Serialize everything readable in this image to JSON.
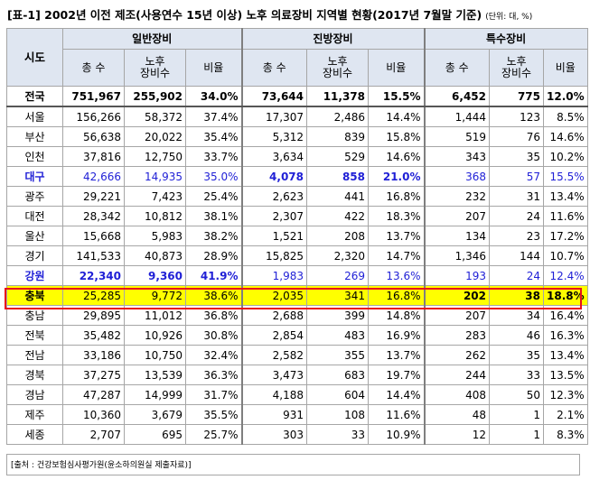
{
  "title": "[표-1] 2002년 이전 제조(사용연수 15년 이상) 노후 의료장비 지역별 현황(2017년 7월말 기준)",
  "unit": "(단위: 대, %)",
  "header": {
    "region": "시도",
    "groups": [
      "일반장비",
      "진방장비",
      "특수장비"
    ],
    "sub": [
      "총 수",
      "노후\n장비수",
      "비율"
    ]
  },
  "rows": [
    {
      "region": "전국",
      "v": [
        "751,967",
        "255,902",
        "34.0%",
        "73,644",
        "11,378",
        "15.5%",
        "6,452",
        "775",
        "12.0%"
      ],
      "style": "total"
    },
    {
      "region": "서울",
      "v": [
        "156,266",
        "58,372",
        "37.4%",
        "17,307",
        "2,486",
        "14.4%",
        "1,444",
        "123",
        "8.5%"
      ],
      "style": ""
    },
    {
      "region": "부산",
      "v": [
        "56,638",
        "20,022",
        "35.4%",
        "5,312",
        "839",
        "15.8%",
        "519",
        "76",
        "14.6%"
      ],
      "style": ""
    },
    {
      "region": "인천",
      "v": [
        "37,816",
        "12,750",
        "33.7%",
        "3,634",
        "529",
        "14.6%",
        "343",
        "35",
        "10.2%"
      ],
      "style": ""
    },
    {
      "region": "대구",
      "v": [
        "42,666",
        "14,935",
        "35.0%",
        "4,078",
        "858",
        "21.0%",
        "368",
        "57",
        "15.5%"
      ],
      "style": "blue-mid"
    },
    {
      "region": "광주",
      "v": [
        "29,221",
        "7,423",
        "25.4%",
        "2,623",
        "441",
        "16.8%",
        "232",
        "31",
        "13.4%"
      ],
      "style": ""
    },
    {
      "region": "대전",
      "v": [
        "28,342",
        "10,812",
        "38.1%",
        "2,307",
        "422",
        "18.3%",
        "207",
        "24",
        "11.6%"
      ],
      "style": ""
    },
    {
      "region": "울산",
      "v": [
        "15,668",
        "5,983",
        "38.2%",
        "1,521",
        "208",
        "13.7%",
        "134",
        "23",
        "17.2%"
      ],
      "style": ""
    },
    {
      "region": "경기",
      "v": [
        "141,533",
        "40,873",
        "28.9%",
        "15,825",
        "2,320",
        "14.7%",
        "1,346",
        "144",
        "10.7%"
      ],
      "style": ""
    },
    {
      "region": "강원",
      "v": [
        "22,340",
        "9,360",
        "41.9%",
        "1,983",
        "269",
        "13.6%",
        "193",
        "24",
        "12.4%"
      ],
      "style": "blue-first"
    },
    {
      "region": "충북",
      "v": [
        "25,285",
        "9,772",
        "38.6%",
        "2,035",
        "341",
        "16.8%",
        "202",
        "38",
        "18.8%"
      ],
      "style": "yellow"
    },
    {
      "region": "충남",
      "v": [
        "29,895",
        "11,012",
        "36.8%",
        "2,688",
        "399",
        "14.8%",
        "207",
        "34",
        "16.4%"
      ],
      "style": ""
    },
    {
      "region": "전북",
      "v": [
        "35,482",
        "10,926",
        "30.8%",
        "2,854",
        "483",
        "16.9%",
        "283",
        "46",
        "16.3%"
      ],
      "style": ""
    },
    {
      "region": "전남",
      "v": [
        "33,186",
        "10,750",
        "32.4%",
        "2,582",
        "355",
        "13.7%",
        "262",
        "35",
        "13.4%"
      ],
      "style": ""
    },
    {
      "region": "경북",
      "v": [
        "37,275",
        "13,539",
        "36.3%",
        "3,473",
        "683",
        "19.7%",
        "244",
        "33",
        "13.5%"
      ],
      "style": ""
    },
    {
      "region": "경남",
      "v": [
        "47,287",
        "14,999",
        "31.7%",
        "4,188",
        "604",
        "14.4%",
        "408",
        "50",
        "12.3%"
      ],
      "style": ""
    },
    {
      "region": "제주",
      "v": [
        "10,360",
        "3,679",
        "35.5%",
        "931",
        "108",
        "11.6%",
        "48",
        "1",
        "2.1%"
      ],
      "style": ""
    },
    {
      "region": "세종",
      "v": [
        "2,707",
        "695",
        "25.7%",
        "303",
        "33",
        "10.9%",
        "12",
        "1",
        "8.3%"
      ],
      "style": ""
    }
  ],
  "source": "[출처 : 건강보험심사평가원(윤소하의원실 제출자료)]",
  "colors": {
    "header_bg": "#dfe6f1",
    "blue_text": "#1f1fd6",
    "highlight_bg": "#ffff00",
    "highlight_border": "#e8101a"
  }
}
